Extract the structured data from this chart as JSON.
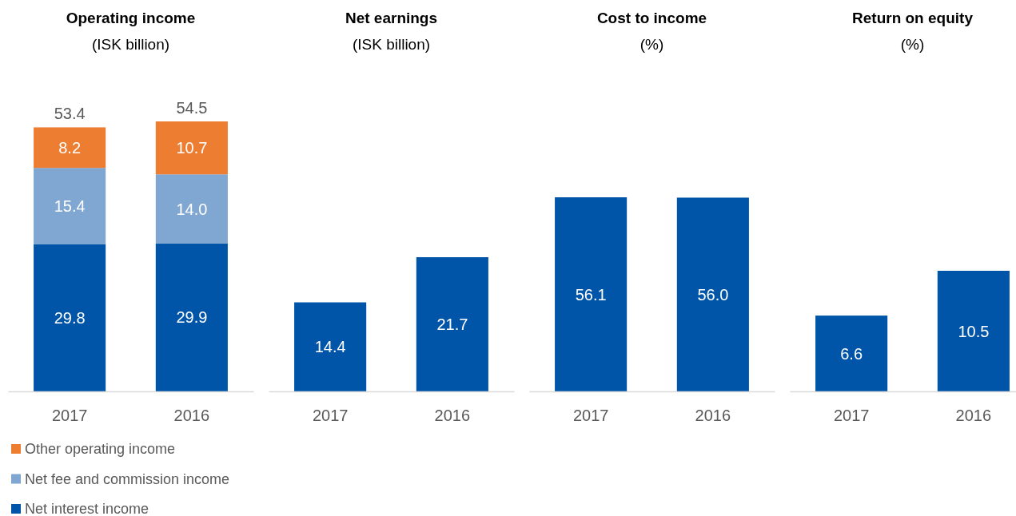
{
  "chart_data": [
    {
      "type": "bar",
      "title": "Operating income",
      "subtitle": "(ISK billion)",
      "categories": [
        "2017",
        "2016"
      ],
      "stacked": true,
      "data_labels": true,
      "legend": "bottom",
      "totals": [
        "53.4",
        "54.5"
      ],
      "series": [
        {
          "name": "Net interest income",
          "color": "#0055a8",
          "values": [
            29.8,
            29.9
          ],
          "value_labels": [
            "29.8",
            "29.9"
          ]
        },
        {
          "name": "Net fee and commission income",
          "color": "#7fa7d1",
          "values": [
            15.4,
            14.0
          ],
          "value_labels": [
            "15.4",
            "14.0"
          ]
        },
        {
          "name": "Other operating income",
          "color": "#ed7d31",
          "values": [
            8.2,
            10.7
          ],
          "value_labels": [
            "8.2",
            "10.7"
          ]
        }
      ]
    },
    {
      "type": "bar",
      "title": "Net earnings",
      "subtitle": "(ISK billion)",
      "categories": [
        "2017",
        "2016"
      ],
      "data_labels": true,
      "series": [
        {
          "color": "#0055a8",
          "values": [
            14.4,
            21.7
          ],
          "value_labels": [
            "14.4",
            "21.7"
          ]
        }
      ]
    },
    {
      "type": "bar",
      "title": "Cost to income",
      "subtitle": "(%)",
      "categories": [
        "2017",
        "2016"
      ],
      "data_labels": true,
      "series": [
        {
          "color": "#0055a8",
          "values": [
            56.1,
            56.0
          ],
          "value_labels": [
            "56.1",
            "56.0"
          ]
        }
      ]
    },
    {
      "type": "bar",
      "title": "Return on equity",
      "subtitle": "(%)",
      "categories": [
        "2017",
        "2016"
      ],
      "data_labels": true,
      "series": [
        {
          "color": "#0055a8",
          "values": [
            6.6,
            10.5
          ],
          "value_labels": [
            "6.6",
            "10.5"
          ]
        }
      ]
    }
  ]
}
